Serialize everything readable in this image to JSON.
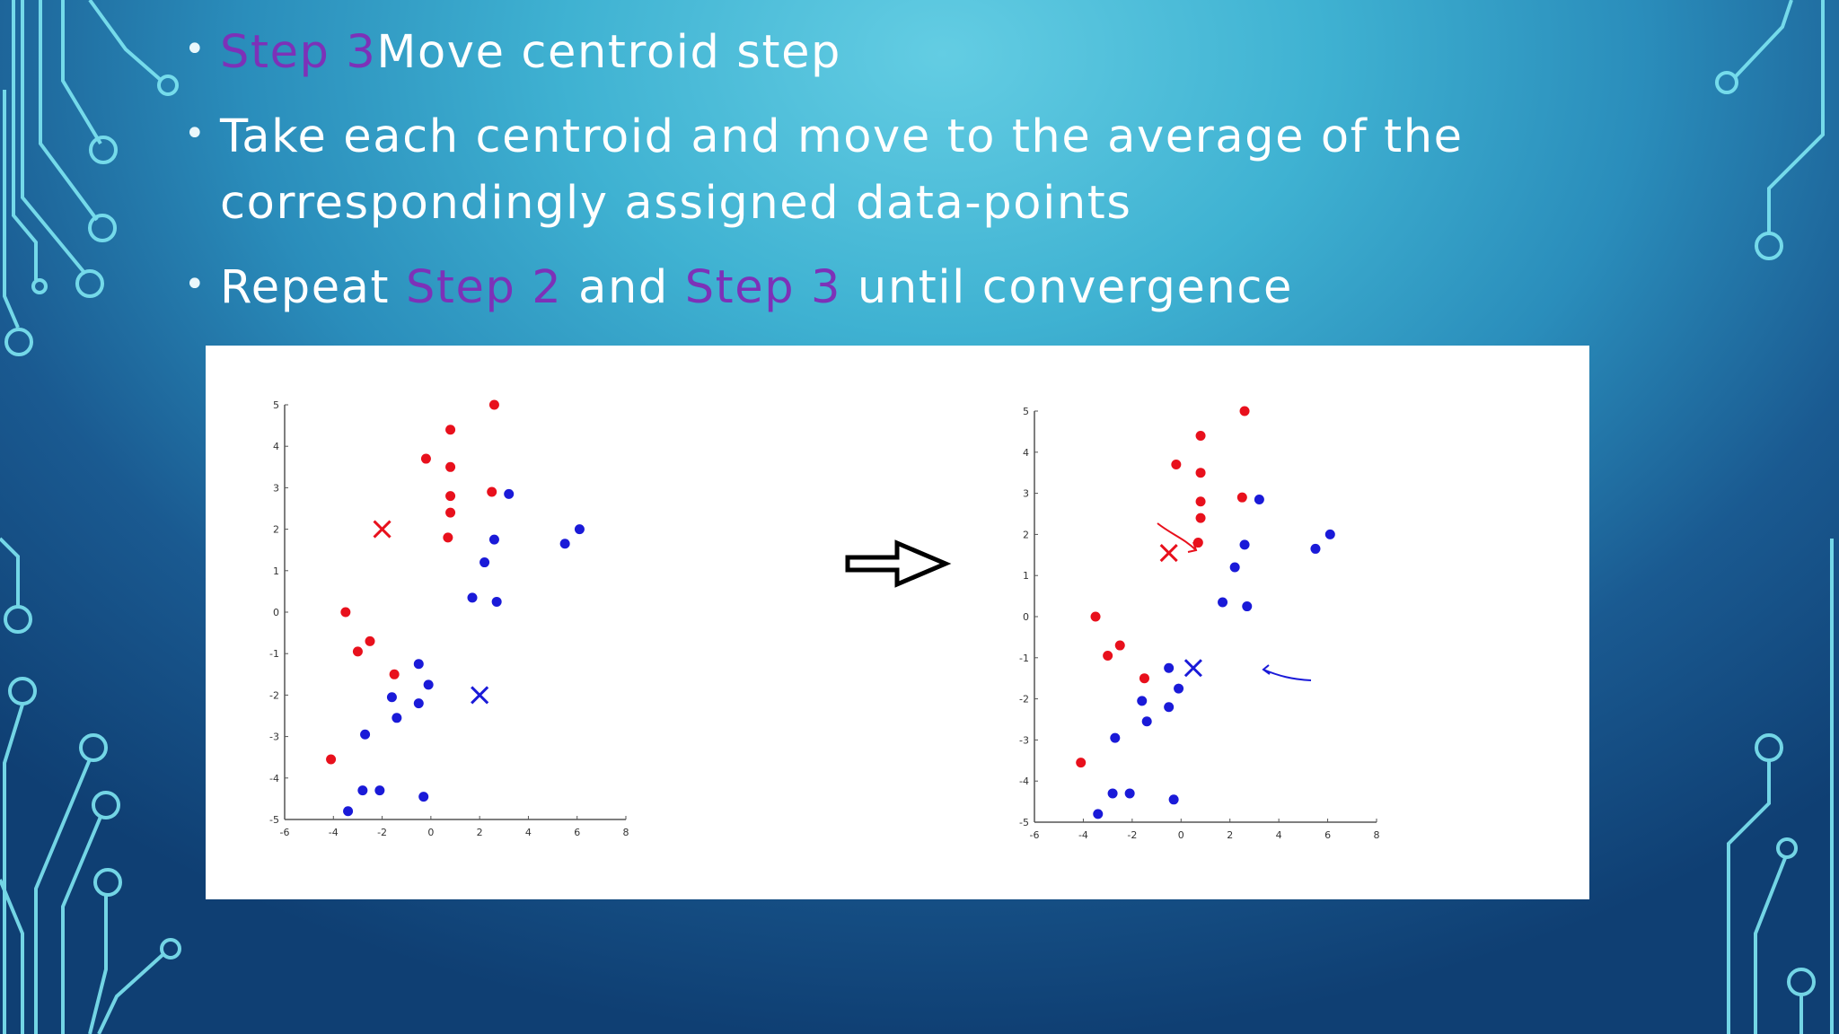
{
  "slide": {
    "bullets": [
      {
        "parts": [
          {
            "text": "Step 3",
            "accent": true
          },
          {
            "text": "Move centroid step",
            "accent": false
          }
        ]
      },
      {
        "parts": [
          {
            "text": "Take each centroid and move to the average of the correspondingly assigned data-points",
            "accent": false
          }
        ]
      },
      {
        "parts": [
          {
            "text": "Repeat ",
            "accent": false
          },
          {
            "text": "Step 2",
            "accent": true
          },
          {
            "text": " and ",
            "accent": false
          },
          {
            "text": "Step 3",
            "accent": true
          },
          {
            "text": " until convergence",
            "accent": false
          }
        ]
      }
    ],
    "colors": {
      "text": "#ffffff",
      "accent": "#7d31b8",
      "cluster_red": "#e8101c",
      "cluster_blue": "#1a1ad8"
    },
    "arrow_icon": "right-arrow-icon"
  },
  "chart_data": [
    {
      "type": "scatter",
      "xlim": [
        -6,
        8
      ],
      "ylim": [
        -5,
        5
      ],
      "x_ticks": [
        -6,
        -4,
        -2,
        0,
        2,
        4,
        6,
        8
      ],
      "y_ticks": [
        -5,
        -4,
        -3,
        -2,
        -1,
        0,
        1,
        2,
        3,
        4,
        5
      ],
      "series": [
        {
          "color": "#e8101c",
          "points": [
            [
              2.6,
              5.0
            ],
            [
              0.8,
              4.4
            ],
            [
              -0.2,
              3.7
            ],
            [
              0.8,
              3.5
            ],
            [
              0.8,
              2.8
            ],
            [
              2.5,
              2.9
            ],
            [
              0.8,
              2.4
            ],
            [
              0.7,
              1.8
            ],
            [
              -3.5,
              0.0
            ],
            [
              -2.5,
              -0.7
            ],
            [
              -3.0,
              -0.95
            ],
            [
              -1.5,
              -1.5
            ],
            [
              -4.1,
              -3.55
            ]
          ]
        },
        {
          "color": "#1a1ad8",
          "points": [
            [
              3.2,
              2.85
            ],
            [
              6.1,
              2.0
            ],
            [
              5.5,
              1.65
            ],
            [
              2.6,
              1.75
            ],
            [
              2.2,
              1.2
            ],
            [
              1.7,
              0.35
            ],
            [
              2.7,
              0.25
            ],
            [
              -0.5,
              -1.25
            ],
            [
              -0.1,
              -1.75
            ],
            [
              -1.6,
              -2.05
            ],
            [
              -0.5,
              -2.2
            ],
            [
              -1.4,
              -2.55
            ],
            [
              -2.7,
              -2.95
            ],
            [
              -2.8,
              -4.3
            ],
            [
              -2.1,
              -4.3
            ],
            [
              -0.3,
              -4.45
            ],
            [
              -3.4,
              -4.8
            ]
          ]
        }
      ],
      "centroids": [
        {
          "color": "#e8101c",
          "x": -2.0,
          "y": 2.0
        },
        {
          "color": "#1a1ad8",
          "x": 2.0,
          "y": -2.0
        }
      ]
    },
    {
      "type": "scatter",
      "xlim": [
        -6,
        8
      ],
      "ylim": [
        -5,
        5
      ],
      "x_ticks": [
        -6,
        -4,
        -2,
        0,
        2,
        4,
        6,
        8
      ],
      "y_ticks": [
        -5,
        -4,
        -3,
        -2,
        -1,
        0,
        1,
        2,
        3,
        4,
        5
      ],
      "series": [
        {
          "color": "#e8101c",
          "points": [
            [
              2.6,
              5.0
            ],
            [
              0.8,
              4.4
            ],
            [
              -0.2,
              3.7
            ],
            [
              0.8,
              3.5
            ],
            [
              0.8,
              2.8
            ],
            [
              2.5,
              2.9
            ],
            [
              0.8,
              2.4
            ],
            [
              0.7,
              1.8
            ],
            [
              -3.5,
              0.0
            ],
            [
              -2.5,
              -0.7
            ],
            [
              -3.0,
              -0.95
            ],
            [
              -1.5,
              -1.5
            ],
            [
              -4.1,
              -3.55
            ]
          ]
        },
        {
          "color": "#1a1ad8",
          "points": [
            [
              3.2,
              2.85
            ],
            [
              6.1,
              2.0
            ],
            [
              5.5,
              1.65
            ],
            [
              2.6,
              1.75
            ],
            [
              2.2,
              1.2
            ],
            [
              1.7,
              0.35
            ],
            [
              2.7,
              0.25
            ],
            [
              -0.5,
              -1.25
            ],
            [
              -0.1,
              -1.75
            ],
            [
              -1.6,
              -2.05
            ],
            [
              -0.5,
              -2.2
            ],
            [
              -1.4,
              -2.55
            ],
            [
              -2.7,
              -2.95
            ],
            [
              -2.8,
              -4.3
            ],
            [
              -2.1,
              -4.3
            ],
            [
              -0.3,
              -4.45
            ],
            [
              -3.4,
              -4.8
            ]
          ]
        }
      ],
      "centroids": [
        {
          "color": "#e8101c",
          "x": -0.5,
          "y": 1.55
        },
        {
          "color": "#1a1ad8",
          "x": 0.5,
          "y": -1.25
        }
      ]
    }
  ]
}
